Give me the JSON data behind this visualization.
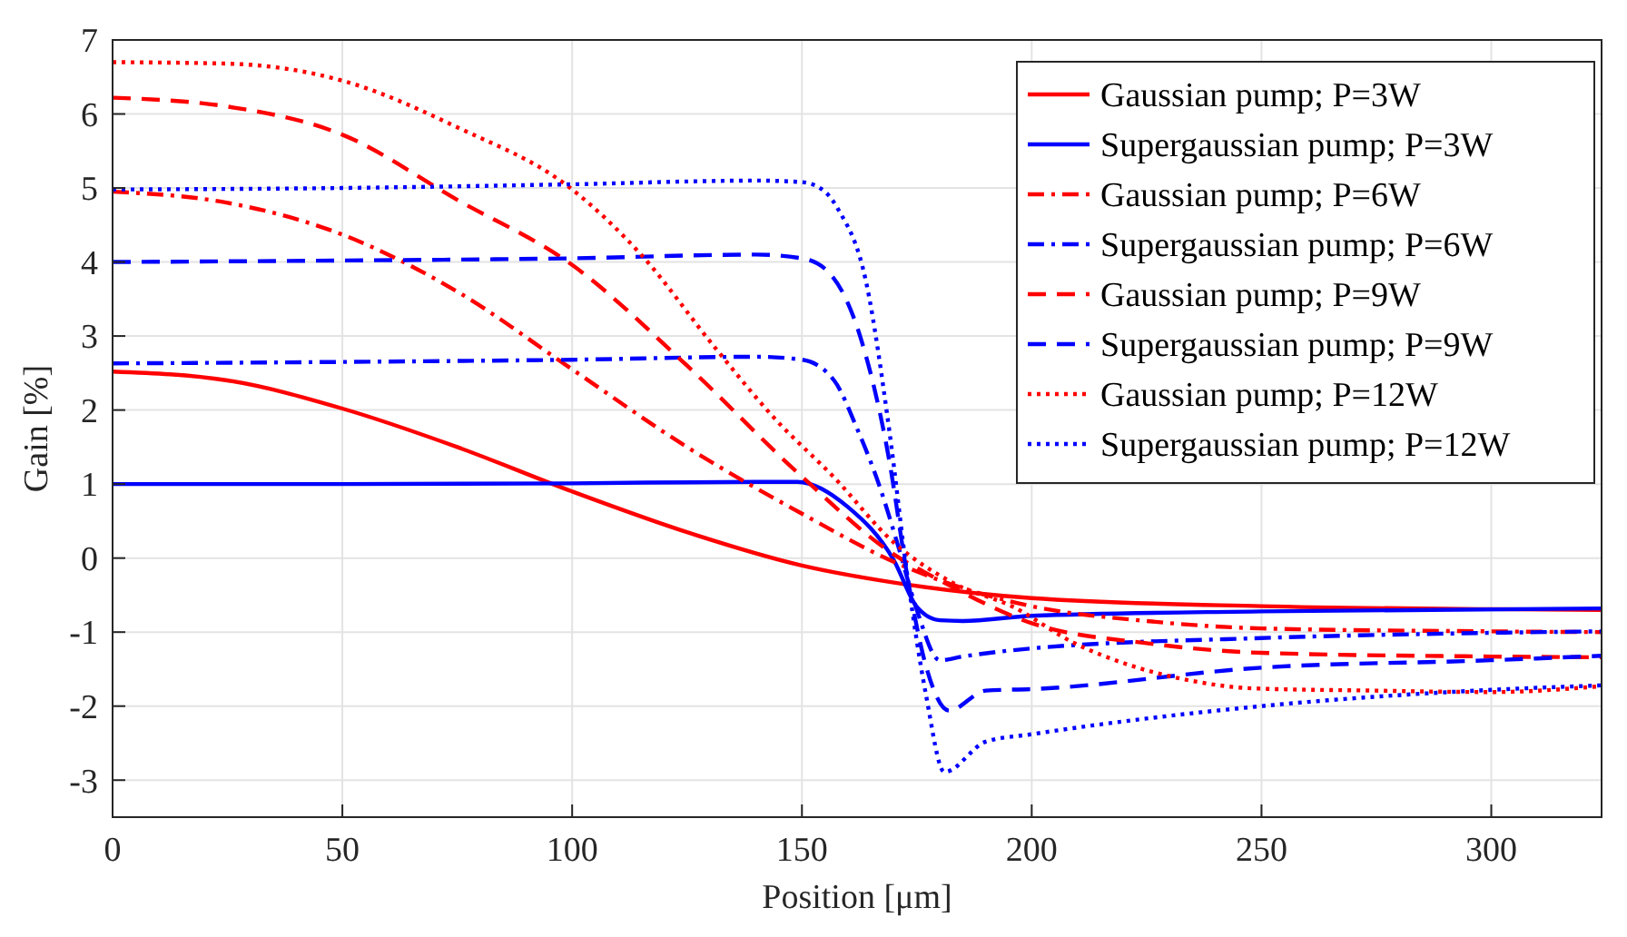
{
  "chart_data": {
    "type": "line",
    "xlabel": "Position [μm]",
    "ylabel": "Gain [%]",
    "xlim": [
      0,
      324
    ],
    "ylim": [
      -3.5,
      7
    ],
    "xticks": [
      0,
      50,
      100,
      150,
      200,
      250,
      300
    ],
    "yticks": [
      -3,
      -2,
      -1,
      0,
      1,
      2,
      3,
      4,
      5,
      6,
      7
    ],
    "grid": true,
    "legend": "top right",
    "series": [
      {
        "name": "Gaussian pump; P=3W",
        "color": "#ff0000",
        "line_style": "solid",
        "x": [
          0,
          25,
          50,
          75,
          100,
          125,
          150,
          170,
          200,
          250,
          300,
          324
        ],
        "values": [
          2.52,
          2.4,
          2.02,
          1.5,
          0.9,
          0.35,
          -0.1,
          -0.33,
          -0.54,
          -0.65,
          -0.69,
          -0.7
        ]
      },
      {
        "name": "Supergaussian pump; P=3W",
        "color": "#0000ff",
        "line_style": "solid",
        "x": [
          0,
          50,
          100,
          140,
          149,
          160,
          170,
          175,
          180,
          185,
          200,
          250,
          324
        ],
        "values": [
          1.0,
          1.0,
          1.01,
          1.03,
          1.03,
          0.69,
          -0.03,
          -0.66,
          -0.84,
          -0.85,
          -0.78,
          -0.72,
          -0.68
        ]
      },
      {
        "name": "Gaussian pump; P=6W",
        "color": "#ff0000",
        "line_style": "dashdot",
        "x": [
          0,
          25,
          50,
          75,
          100,
          125,
          150,
          170,
          180,
          200,
          225,
          250,
          300,
          324
        ],
        "values": [
          4.95,
          4.8,
          4.37,
          3.6,
          2.55,
          1.5,
          0.6,
          -0.05,
          -0.3,
          -0.65,
          -0.85,
          -0.95,
          -0.99,
          -1.0
        ]
      },
      {
        "name": "Supergaussian pump; P=6W",
        "color": "#0000ff",
        "line_style": "dashdot",
        "x": [
          0,
          50,
          100,
          140,
          150,
          157,
          162,
          167,
          171,
          175,
          180,
          185,
          200,
          250,
          300,
          324
        ],
        "values": [
          2.63,
          2.65,
          2.68,
          2.72,
          2.68,
          2.4,
          1.75,
          0.95,
          0.15,
          -0.7,
          -1.38,
          -1.33,
          -1.22,
          -1.08,
          -1.01,
          -0.99
        ]
      },
      {
        "name": "Gaussian pump; P=9W",
        "color": "#ff0000",
        "line_style": "dashed",
        "x": [
          0,
          25,
          50,
          75,
          100,
          125,
          150,
          170,
          180,
          200,
          225,
          250,
          300,
          324
        ],
        "values": [
          6.22,
          6.1,
          5.72,
          4.84,
          3.96,
          2.6,
          1.1,
          0.05,
          -0.3,
          -0.88,
          -1.15,
          -1.28,
          -1.33,
          -1.34
        ]
      },
      {
        "name": "Supergaussian pump; P=9W",
        "color": "#0000ff",
        "line_style": "dashed",
        "x": [
          0,
          50,
          100,
          140,
          150,
          156,
          163,
          169,
          173,
          177,
          182,
          190,
          200,
          250,
          300,
          324
        ],
        "values": [
          4.0,
          4.02,
          4.05,
          4.1,
          4.05,
          3.85,
          2.93,
          1.32,
          -0.27,
          -1.46,
          -2.06,
          -1.79,
          -1.77,
          -1.48,
          -1.38,
          -1.32
        ]
      },
      {
        "name": "Gaussian pump; P=12W",
        "color": "#ff0000",
        "line_style": "dotted",
        "x": [
          0,
          25,
          50,
          75,
          100,
          115,
          131,
          144,
          157,
          170,
          183,
          196,
          209,
          222,
          235,
          248,
          274,
          300,
          324
        ],
        "values": [
          6.7,
          6.68,
          6.45,
          5.82,
          4.98,
          4.1,
          2.85,
          1.89,
          1.09,
          0.21,
          -0.34,
          -0.66,
          -1.14,
          -1.46,
          -1.66,
          -1.76,
          -1.79,
          -1.81,
          -1.73
        ]
      },
      {
        "name": "Supergaussian pump; P=12W",
        "color": "#0000ff",
        "line_style": "dotted",
        "x": [
          0,
          50,
          100,
          140,
          150,
          155,
          158,
          164,
          169,
          173,
          177,
          181,
          190,
          200,
          250,
          300,
          324
        ],
        "values": [
          4.98,
          5.0,
          5.05,
          5.1,
          5.08,
          4.95,
          4.7,
          3.72,
          1.73,
          -0.27,
          -1.85,
          -2.89,
          -2.48,
          -2.38,
          -2.0,
          -1.78,
          -1.72
        ]
      }
    ]
  }
}
